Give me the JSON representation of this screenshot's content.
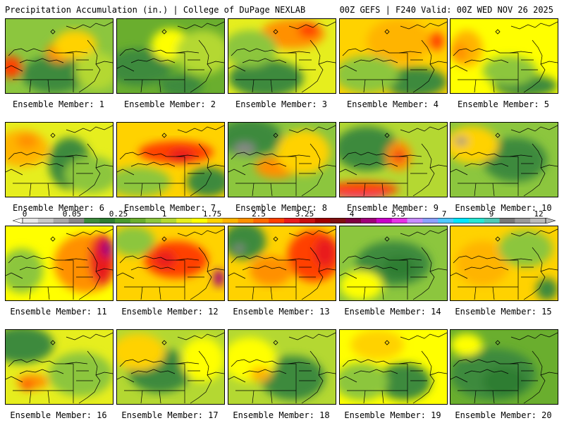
{
  "header": {
    "left": "Precipitation Accumulation (in.) | College of DuPage NEXLAB",
    "right": "00Z GEFS | F240 Valid: 00Z WED NOV 26 2025"
  },
  "colorbar": {
    "tick_labels": [
      "0",
      "0.05",
      "0.25",
      "1",
      "1.75",
      "2.5",
      "3.25",
      "4",
      "5.5",
      "7",
      "9",
      "12"
    ],
    "colors": [
      "#e8e8e8",
      "#c8c8c8",
      "#a8a8a8",
      "#888888",
      "#3c8a3c",
      "#2e7d32",
      "#4a9a2e",
      "#6aae2e",
      "#8cc63e",
      "#b4d832",
      "#e6ee1e",
      "#ffff00",
      "#ffd200",
      "#ffb400",
      "#ff9000",
      "#ff6a00",
      "#ff4000",
      "#e81c1c",
      "#c81010",
      "#a00000",
      "#801010",
      "#800040",
      "#a0007a",
      "#c800c8",
      "#e632e6",
      "#c88cff",
      "#8ca0ff",
      "#50c8ff",
      "#00e6ff",
      "#28e6d2",
      "#50c8b4",
      "#787878",
      "#999999",
      "#bbbbbb"
    ]
  },
  "panels": [
    {
      "label": "Ensemble Member: 1",
      "base": "#8cc63e",
      "blobs": [
        [
          "#3c8a3c",
          0.45,
          0.75,
          0.3,
          0.25
        ],
        [
          "#ff9000",
          0.5,
          0.45,
          0.12,
          0.14
        ],
        [
          "#ffd200",
          0.65,
          0.35,
          0.2,
          0.2
        ],
        [
          "#ff4000",
          0.05,
          0.65,
          0.1,
          0.15
        ],
        [
          "#b4d832",
          0.85,
          0.7,
          0.2,
          0.25
        ]
      ]
    },
    {
      "label": "Ensemble Member: 2",
      "base": "#6aae2e",
      "blobs": [
        [
          "#3c8a3c",
          0.2,
          0.65,
          0.3,
          0.25
        ],
        [
          "#ffff00",
          0.5,
          0.35,
          0.18,
          0.22
        ],
        [
          "#b4d832",
          0.8,
          0.45,
          0.25,
          0.3
        ],
        [
          "#3c8a3c",
          0.6,
          0.9,
          0.2,
          0.15
        ]
      ]
    },
    {
      "label": "Ensemble Member: 3",
      "base": "#e6ee1e",
      "blobs": [
        [
          "#ff9000",
          0.6,
          0.2,
          0.3,
          0.2
        ],
        [
          "#ff4000",
          0.75,
          0.15,
          0.1,
          0.1
        ],
        [
          "#3c8a3c",
          0.35,
          0.8,
          0.35,
          0.25
        ],
        [
          "#8cc63e",
          0.2,
          0.4,
          0.25,
          0.25
        ]
      ]
    },
    {
      "label": "Ensemble Member: 4",
      "base": "#ffd200",
      "blobs": [
        [
          "#ffb400",
          0.55,
          0.3,
          0.3,
          0.3
        ],
        [
          "#ff4000",
          0.9,
          0.3,
          0.07,
          0.12
        ],
        [
          "#3c8a3c",
          0.7,
          0.85,
          0.3,
          0.2
        ],
        [
          "#8cc63e",
          0.25,
          0.75,
          0.3,
          0.25
        ]
      ]
    },
    {
      "label": "Ensemble Member: 5",
      "base": "#ffff00",
      "blobs": [
        [
          "#ffb400",
          0.15,
          0.4,
          0.15,
          0.25
        ],
        [
          "#ff9000",
          0.08,
          0.45,
          0.08,
          0.12
        ],
        [
          "#3c8a3c",
          0.7,
          0.9,
          0.3,
          0.15
        ],
        [
          "#8cc63e",
          0.55,
          0.7,
          0.25,
          0.2
        ]
      ]
    },
    {
      "label": "Ensemble Member: 6",
      "base": "#e6ee1e",
      "blobs": [
        [
          "#ffb400",
          0.15,
          0.35,
          0.25,
          0.25
        ],
        [
          "#ff9000",
          0.2,
          0.25,
          0.1,
          0.1
        ],
        [
          "#3c8a3c",
          0.6,
          0.55,
          0.2,
          0.35
        ],
        [
          "#8cc63e",
          0.8,
          0.7,
          0.25,
          0.25
        ]
      ]
    },
    {
      "label": "Ensemble Member: 7",
      "base": "#ffd200",
      "blobs": [
        [
          "#ff4000",
          0.55,
          0.4,
          0.35,
          0.15
        ],
        [
          "#e81c1c",
          0.6,
          0.45,
          0.12,
          0.1
        ],
        [
          "#8cc63e",
          0.2,
          0.8,
          0.3,
          0.2
        ],
        [
          "#3c8a3c",
          0.85,
          0.8,
          0.2,
          0.2
        ]
      ]
    },
    {
      "label": "Ensemble Member: 8",
      "base": "#8cc63e",
      "blobs": [
        [
          "#3c8a3c",
          0.2,
          0.2,
          0.3,
          0.25
        ],
        [
          "#888888",
          0.15,
          0.35,
          0.1,
          0.08
        ],
        [
          "#ff9000",
          0.45,
          0.6,
          0.2,
          0.15
        ],
        [
          "#ffd200",
          0.7,
          0.4,
          0.25,
          0.3
        ]
      ]
    },
    {
      "label": "Ensemble Member: 9",
      "base": "#b4d832",
      "blobs": [
        [
          "#3c8a3c",
          0.25,
          0.35,
          0.3,
          0.3
        ],
        [
          "#ff9000",
          0.55,
          0.45,
          0.12,
          0.2
        ],
        [
          "#e81c1c",
          0.55,
          0.45,
          0.05,
          0.08
        ],
        [
          "#c800c8",
          0.2,
          0.95,
          0.25,
          0.08
        ],
        [
          "#ff4000",
          0.2,
          0.9,
          0.35,
          0.1
        ]
      ]
    },
    {
      "label": "Ensemble Member: 10",
      "base": "#8cc63e",
      "blobs": [
        [
          "#3c8a3c",
          0.6,
          0.5,
          0.3,
          0.3
        ],
        [
          "#ffd200",
          0.2,
          0.3,
          0.25,
          0.25
        ],
        [
          "#888888",
          0.1,
          0.25,
          0.06,
          0.05
        ]
      ]
    },
    {
      "label": "Ensemble Member: 11",
      "base": "#ffff00",
      "blobs": [
        [
          "#ff9000",
          0.75,
          0.5,
          0.3,
          0.4
        ],
        [
          "#e81c1c",
          0.9,
          0.45,
          0.12,
          0.35
        ],
        [
          "#a0007a",
          0.95,
          0.3,
          0.06,
          0.12
        ],
        [
          "#8cc63e",
          0.15,
          0.6,
          0.2,
          0.3
        ]
      ]
    },
    {
      "label": "Ensemble Member: 12",
      "base": "#ffd200",
      "blobs": [
        [
          "#ff4000",
          0.55,
          0.45,
          0.3,
          0.25
        ],
        [
          "#e81c1c",
          0.45,
          0.45,
          0.1,
          0.12
        ],
        [
          "#8cc63e",
          0.15,
          0.2,
          0.2,
          0.2
        ],
        [
          "#a0007a",
          0.95,
          0.7,
          0.05,
          0.12
        ]
      ]
    },
    {
      "label": "Ensemble Member: 13",
      "base": "#ffd200",
      "blobs": [
        [
          "#ff4000",
          0.8,
          0.4,
          0.25,
          0.35
        ],
        [
          "#e81c1c",
          0.9,
          0.35,
          0.1,
          0.2
        ],
        [
          "#3c8a3c",
          0.15,
          0.2,
          0.2,
          0.25
        ],
        [
          "#888888",
          0.1,
          0.3,
          0.05,
          0.05
        ],
        [
          "#ff9000",
          0.4,
          0.6,
          0.2,
          0.2
        ]
      ]
    },
    {
      "label": "Ensemble Member: 14",
      "base": "#8cc63e",
      "blobs": [
        [
          "#3c8a3c",
          0.5,
          0.5,
          0.35,
          0.3
        ],
        [
          "#2e7d32",
          0.55,
          0.55,
          0.15,
          0.15
        ],
        [
          "#ffff00",
          0.2,
          0.8,
          0.2,
          0.2
        ]
      ]
    },
    {
      "label": "Ensemble Member: 15",
      "base": "#ffd200",
      "blobs": [
        [
          "#ffb400",
          0.3,
          0.5,
          0.25,
          0.3
        ],
        [
          "#8cc63e",
          0.7,
          0.3,
          0.25,
          0.25
        ],
        [
          "#3c8a3c",
          0.9,
          0.85,
          0.1,
          0.15
        ]
      ]
    },
    {
      "label": "Ensemble Member: 16",
      "base": "#e6ee1e",
      "blobs": [
        [
          "#3c8a3c",
          0.15,
          0.2,
          0.3,
          0.25
        ],
        [
          "#ff9000",
          0.25,
          0.7,
          0.15,
          0.1
        ],
        [
          "#ff4000",
          0.2,
          0.75,
          0.06,
          0.06
        ],
        [
          "#8cc63e",
          0.7,
          0.6,
          0.3,
          0.3
        ]
      ]
    },
    {
      "label": "Ensemble Member: 17",
      "base": "#b4d832",
      "blobs": [
        [
          "#3c8a3c",
          0.4,
          0.55,
          0.3,
          0.3
        ],
        [
          "#ffd200",
          0.2,
          0.3,
          0.25,
          0.25
        ],
        [
          "#ffff00",
          0.8,
          0.4,
          0.2,
          0.3
        ]
      ]
    },
    {
      "label": "Ensemble Member: 18",
      "base": "#b4d832",
      "blobs": [
        [
          "#3c8a3c",
          0.6,
          0.65,
          0.3,
          0.3
        ],
        [
          "#ffff00",
          0.2,
          0.4,
          0.25,
          0.3
        ],
        [
          "#ffb400",
          0.3,
          0.6,
          0.1,
          0.1
        ]
      ]
    },
    {
      "label": "Ensemble Member: 19",
      "base": "#ffff00",
      "blobs": [
        [
          "#ffd200",
          0.35,
          0.2,
          0.25,
          0.2
        ],
        [
          "#3c8a3c",
          0.6,
          0.7,
          0.25,
          0.25
        ],
        [
          "#8cc63e",
          0.2,
          0.7,
          0.25,
          0.25
        ]
      ]
    },
    {
      "label": "Ensemble Member: 20",
      "base": "#6aae2e",
      "blobs": [
        [
          "#3c8a3c",
          0.4,
          0.6,
          0.4,
          0.35
        ],
        [
          "#2e7d32",
          0.5,
          0.7,
          0.2,
          0.2
        ],
        [
          "#ffff00",
          0.15,
          0.2,
          0.15,
          0.15
        ]
      ]
    }
  ]
}
